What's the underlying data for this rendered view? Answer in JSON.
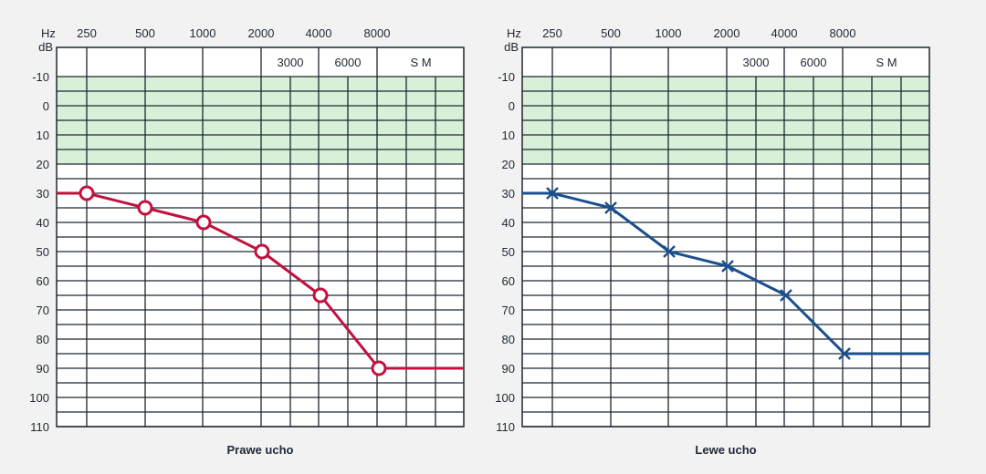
{
  "chart_data": [
    {
      "type": "line",
      "title": "Prawe ucho",
      "x_unit_label": "Hz",
      "y_unit_label": "dB",
      "x_top_labels": [
        "250",
        "500",
        "1000",
        "2000",
        "4000",
        "8000"
      ],
      "x_inner_labels": [
        "3000",
        "6000",
        "S M"
      ],
      "y_ticks": [
        -10,
        0,
        10,
        20,
        30,
        40,
        50,
        60,
        70,
        80,
        90,
        100,
        110
      ],
      "ylim": [
        -10,
        110
      ],
      "y_inverted": true,
      "normal_range_db": [
        -10,
        20
      ],
      "marker": "circle",
      "color": "#c1123f",
      "x": [
        250,
        500,
        1000,
        2000,
        4000,
        8000
      ],
      "y": [
        30,
        35,
        40,
        50,
        65,
        90
      ]
    },
    {
      "type": "line",
      "title": "Lewe ucho",
      "x_unit_label": "Hz",
      "y_unit_label": "dB",
      "x_top_labels": [
        "250",
        "500",
        "1000",
        "2000",
        "4000",
        "8000"
      ],
      "x_inner_labels": [
        "3000",
        "6000",
        "S M"
      ],
      "y_ticks": [
        -10,
        0,
        10,
        20,
        30,
        40,
        50,
        60,
        70,
        80,
        90,
        100,
        110
      ],
      "ylim": [
        -10,
        110
      ],
      "y_inverted": true,
      "normal_range_db": [
        -10,
        20
      ],
      "marker": "x",
      "color": "#1a4f8f",
      "x": [
        250,
        500,
        1000,
        2000,
        4000,
        8000
      ],
      "y": [
        30,
        35,
        50,
        55,
        65,
        85
      ]
    }
  ],
  "colors": {
    "grid": "#1e2733",
    "normal_band": "#d8f0d8",
    "background": "#f2f2f2"
  }
}
